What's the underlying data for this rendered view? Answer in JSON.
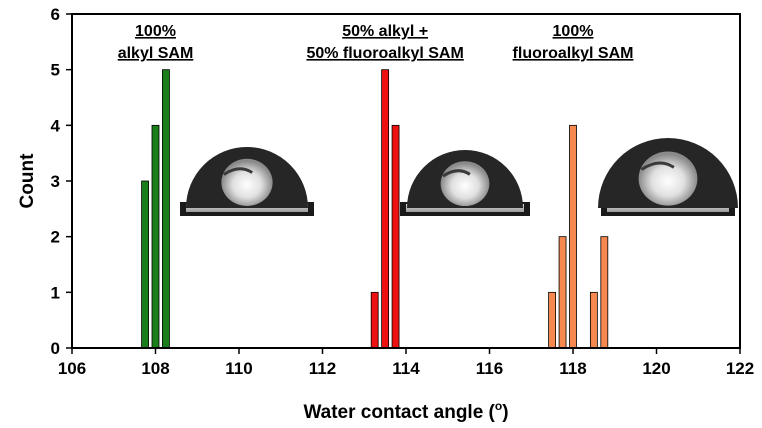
{
  "chart_data": {
    "type": "bar",
    "title": "",
    "xlabel": "Water contact angle (",
    "xlabel_degree": "o",
    "xlabel_close": ")",
    "ylabel": "Count",
    "xlim": [
      106,
      122
    ],
    "ylim": [
      0,
      6
    ],
    "xticks": [
      106,
      108,
      110,
      112,
      114,
      116,
      118,
      120,
      122
    ],
    "yticks": [
      0,
      1,
      2,
      3,
      4,
      5,
      6
    ],
    "grid": false,
    "legend": "none",
    "series": [
      {
        "color": "#1a7f1a",
        "x": [
          107.75,
          108.0,
          108.25
        ],
        "values": [
          3,
          4,
          5
        ]
      },
      {
        "color": "#ee1111",
        "x": [
          113.25,
          113.5,
          113.75
        ],
        "values": [
          1,
          5,
          4
        ]
      },
      {
        "color": "#f5894f",
        "x": [
          117.5,
          117.75,
          118.0,
          118.5,
          118.75
        ],
        "values": [
          1,
          2,
          4,
          1,
          2
        ]
      }
    ],
    "annotations": [
      {
        "lines": [
          "100%",
          "alkyl SAM"
        ],
        "x": 108.0
      },
      {
        "lines": [
          "50% alkyl +",
          "50% fluoroalkyl SAM"
        ],
        "x": 113.5
      },
      {
        "lines": [
          "100%",
          "fluoroalkyl SAM"
        ],
        "x": 118.0
      }
    ]
  }
}
